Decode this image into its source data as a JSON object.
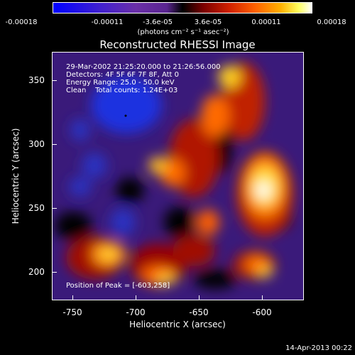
{
  "colorbar": {
    "ticks": [
      "-0.00018",
      "-0.00011",
      "-3.6e-05",
      "3.6e-05",
      "0.00011",
      "0.00018"
    ],
    "units": "(photons cm⁻² s⁻¹ asec⁻²)"
  },
  "title": "Reconstructed RHESSI Image",
  "info": {
    "time": "29-Mar-2002 21:25:20.000 to 21:26:56.000",
    "detectors": "Detectors: 4F 5F 6F 7F 8F, Att 0",
    "energy": "Energy Range: 25.0 - 50.0 keV",
    "clean": "Clean    Total counts: 1.24E+03"
  },
  "peak": "Position of Peak = [-603,258]",
  "axes": {
    "xlabel": "Heliocentric X (arcsec)",
    "ylabel": "Heliocentric Y (arcsec)",
    "xticks": [
      "-750",
      "-700",
      "-650",
      "-600"
    ],
    "yticks": [
      "350",
      "300",
      "250",
      "200"
    ]
  },
  "timestamp": "14-Apr-2013 00:22",
  "colors": {
    "background": "#000000",
    "low": "#0000ff",
    "high": "#ffffff"
  }
}
